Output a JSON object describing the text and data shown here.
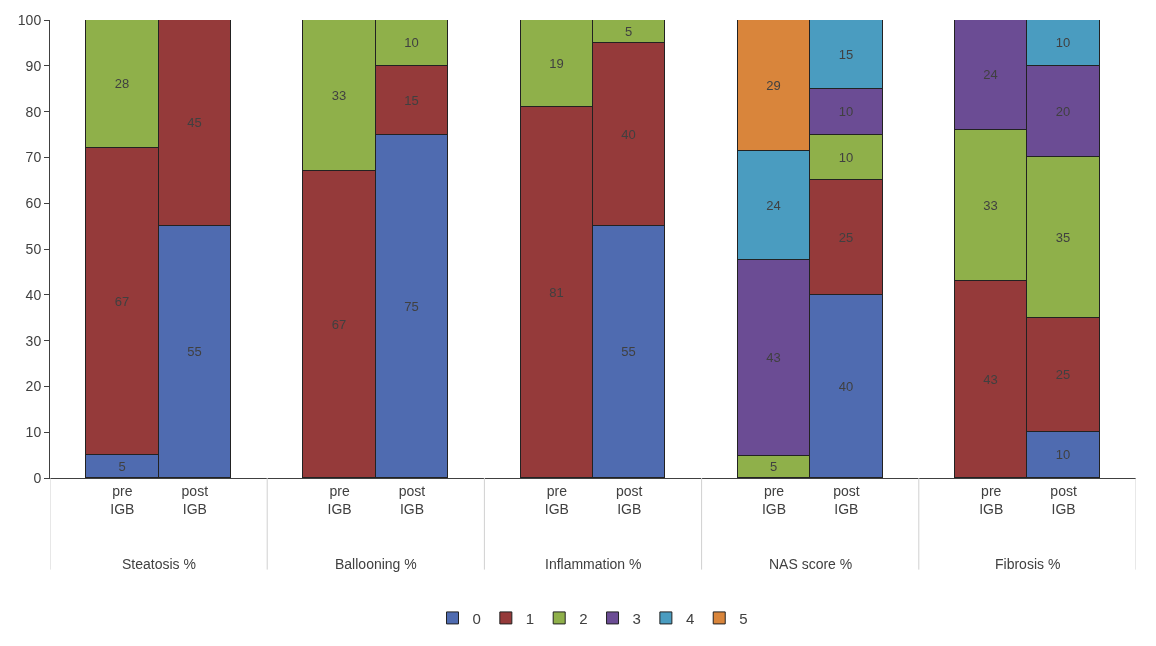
{
  "chart_data": {
    "type": "bar",
    "stacked": true,
    "categories": [
      "pre IGB",
      "post IGB",
      "pre IGB",
      "post IGB",
      "pre IGB",
      "post IGB",
      "pre IGB",
      "post IGB",
      "pre IGB",
      "post IGB"
    ],
    "annotations": [
      "Steatosis %",
      "Ballooning %",
      "Inflammation %",
      "NAS score %",
      "Fibrosis %"
    ],
    "series": [
      {
        "name": "0",
        "color": "#4f6bb0",
        "values": [
          5,
          55,
          null,
          75,
          null,
          55,
          null,
          40,
          null,
          10
        ],
        "value_labels": [
          "5",
          "55",
          null,
          "75",
          null,
          "55",
          null,
          "40",
          null,
          "10"
        ]
      },
      {
        "name": "1",
        "color": "#953a3a",
        "values": [
          67,
          45,
          67,
          15,
          81,
          40,
          null,
          25,
          43,
          25
        ],
        "value_labels": [
          "67",
          "45",
          "67",
          "15",
          "81",
          "40",
          null,
          "25",
          "43",
          "25"
        ]
      },
      {
        "name": "2",
        "color": "#8fb04a",
        "values": [
          28,
          null,
          33,
          10,
          19,
          5,
          4.8,
          10,
          33,
          35
        ],
        "value_labels": [
          "28",
          null,
          "33",
          "10",
          "19",
          "5",
          "5",
          "10",
          "33",
          "35"
        ]
      },
      {
        "name": "3",
        "color": "#6b4c94",
        "values": [
          null,
          null,
          null,
          null,
          null,
          null,
          42.9,
          10,
          24,
          20
        ],
        "value_labels": [
          null,
          null,
          null,
          null,
          null,
          null,
          "43",
          "10",
          "24",
          "20"
        ]
      },
      {
        "name": "4",
        "color": "#4a9cc0",
        "values": [
          null,
          null,
          null,
          null,
          null,
          null,
          23.8,
          15,
          null,
          10
        ],
        "value_labels": [
          null,
          null,
          null,
          null,
          null,
          null,
          "24",
          "15",
          null,
          "10"
        ]
      },
      {
        "name": "5",
        "color": "#d9853b",
        "values": [
          null,
          null,
          null,
          null,
          null,
          null,
          28.5,
          null,
          null,
          null
        ],
        "value_labels": [
          null,
          null,
          null,
          null,
          null,
          null,
          "29",
          null,
          null,
          null
        ]
      }
    ],
    "ylim": [
      0,
      100
    ],
    "yticks": [
      0,
      10,
      20,
      30,
      40,
      50,
      60,
      70,
      80,
      90,
      100
    ],
    "legend": "bottom"
  }
}
